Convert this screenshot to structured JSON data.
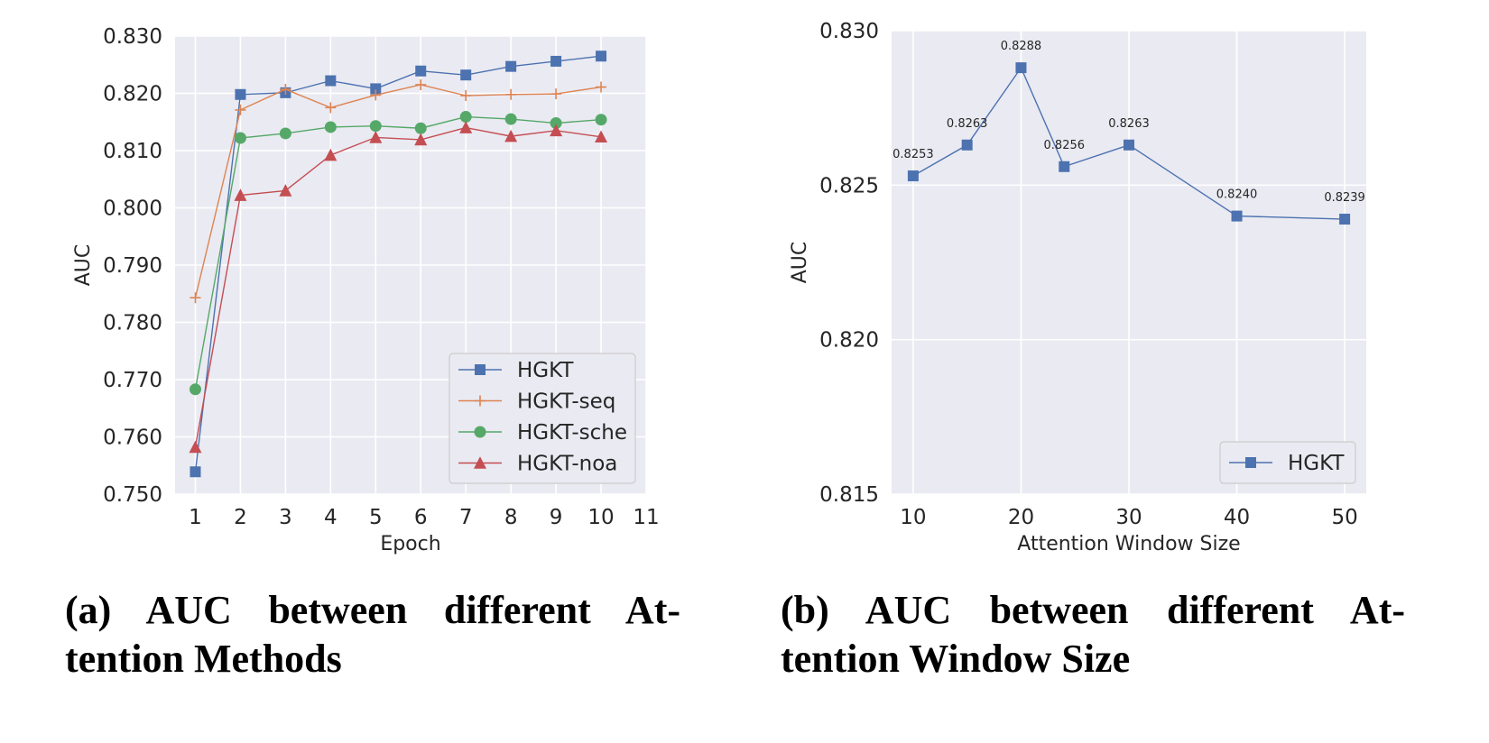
{
  "colors": {
    "plot_bg": "#EAEAF2",
    "grid": "#FFFFFF",
    "HGKT": "#4C72B0",
    "HGKT-seq": "#DD8452",
    "HGKT-sche": "#55A868",
    "HGKT-noa": "#C44E52"
  },
  "chart_data": [
    {
      "type": "line",
      "xlabel": "Epoch",
      "ylabel": "AUC",
      "xlim": [
        0.55,
        11
      ],
      "ylim": [
        0.75,
        0.83
      ],
      "xticks": [
        1,
        2,
        3,
        4,
        5,
        6,
        7,
        8,
        9,
        10,
        11
      ],
      "yticks": [
        "0.750",
        "0.760",
        "0.770",
        "0.780",
        "0.790",
        "0.800",
        "0.810",
        "0.820",
        "0.830"
      ],
      "grid": true,
      "legend_position": "lower-right",
      "x": [
        1,
        2,
        3,
        4,
        5,
        6,
        7,
        8,
        9,
        10
      ],
      "series": [
        {
          "name": "HGKT",
          "marker": "square",
          "color": "#4C72B0",
          "values": [
            0.7539,
            0.8198,
            0.8201,
            0.8222,
            0.8208,
            0.8239,
            0.8232,
            0.8247,
            0.8256,
            0.8265
          ]
        },
        {
          "name": "HGKT-seq",
          "marker": "plus",
          "color": "#DD8452",
          "values": [
            0.7843,
            0.8171,
            0.8207,
            0.8175,
            0.8197,
            0.8215,
            0.8196,
            0.8198,
            0.8199,
            0.8211
          ]
        },
        {
          "name": "HGKT-sche",
          "marker": "circle",
          "color": "#55A868",
          "values": [
            0.7683,
            0.8122,
            0.813,
            0.8141,
            0.8143,
            0.8139,
            0.8159,
            0.8155,
            0.8148,
            0.8154
          ]
        },
        {
          "name": "HGKT-noa",
          "marker": "triangle",
          "color": "#C44E52",
          "values": [
            0.7582,
            0.8022,
            0.803,
            0.8092,
            0.8123,
            0.8119,
            0.814,
            0.8125,
            0.8135,
            0.8124
          ]
        }
      ]
    },
    {
      "type": "line",
      "xlabel": "Attention Window Size",
      "ylabel": "AUC",
      "xlim": [
        8,
        52
      ],
      "ylim": [
        0.815,
        0.83
      ],
      "xticks": [
        10,
        20,
        30,
        40,
        50
      ],
      "yticks": [
        "0.815",
        "0.820",
        "0.825",
        "0.830"
      ],
      "grid": true,
      "legend_position": "lower-right",
      "x": [
        10,
        15,
        20,
        24,
        30,
        40,
        50
      ],
      "series": [
        {
          "name": "HGKT",
          "marker": "square",
          "color": "#4C72B0",
          "values": [
            0.8253,
            0.8263,
            0.8288,
            0.8256,
            0.8263,
            0.824,
            0.8239
          ],
          "labels": [
            "0.8253",
            "0.8263",
            "0.8288",
            "0.8256",
            "0.8263",
            "0.8240",
            "0.8239"
          ]
        }
      ]
    }
  ],
  "captions": {
    "a_line1": "(a) AUC between different At-",
    "a_line2": "tention Methods",
    "b_line1": "(b) AUC between different At-",
    "b_line2": "tention Window Size"
  }
}
